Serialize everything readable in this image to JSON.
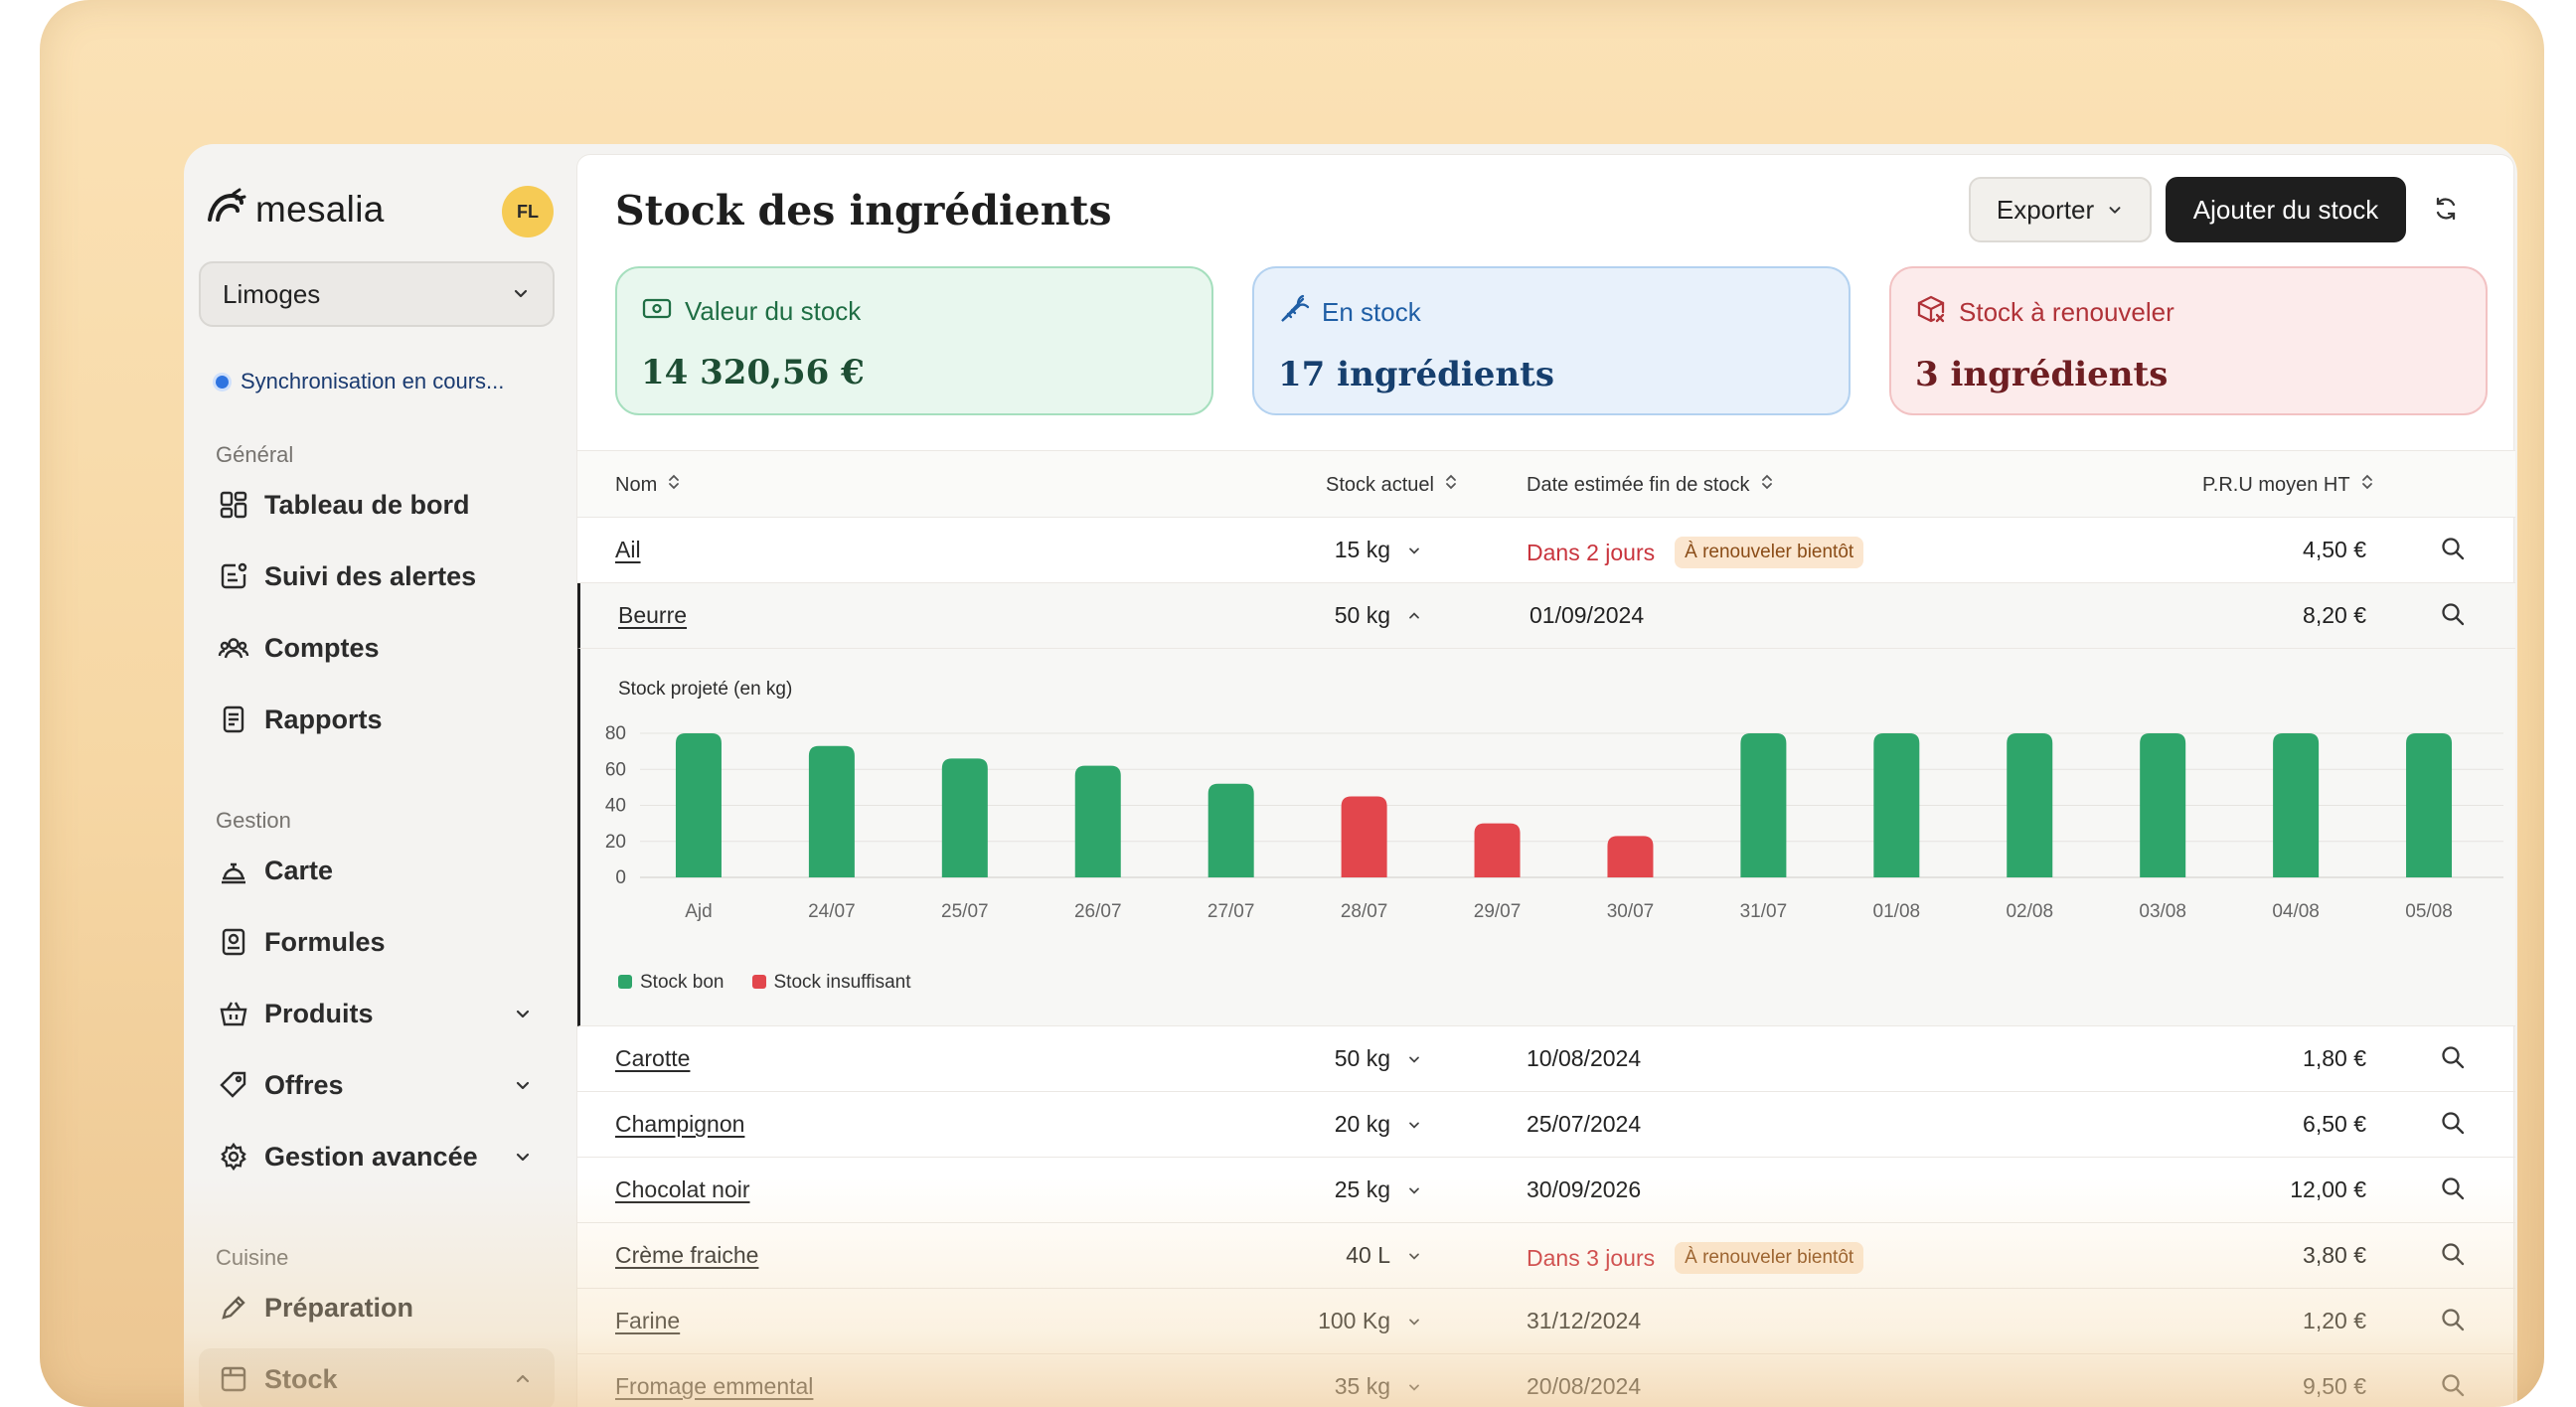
{
  "brand": {
    "name": "mesalia",
    "avatar_initials": "FL"
  },
  "sidebar": {
    "site": "Limoges",
    "sync_status": "Synchronisation en cours...",
    "sections": [
      "Général",
      "Gestion",
      "Cuisine"
    ],
    "items": [
      {
        "label": "Tableau de bord",
        "icon": "dashboard-icon"
      },
      {
        "label": "Suivi des alertes",
        "icon": "alert-icon"
      },
      {
        "label": "Comptes",
        "icon": "users-icon"
      },
      {
        "label": "Rapports",
        "icon": "report-icon"
      },
      {
        "label": "Carte",
        "icon": "cloche-icon"
      },
      {
        "label": "Formules",
        "icon": "menu-book-icon"
      },
      {
        "label": "Produits",
        "icon": "basket-icon",
        "expandable": true
      },
      {
        "label": "Offres",
        "icon": "tag-icon",
        "expandable": true
      },
      {
        "label": "Gestion avancée",
        "icon": "gear-icon",
        "expandable": true
      },
      {
        "label": "Préparation",
        "icon": "pen-icon"
      },
      {
        "label": "Stock",
        "icon": "stock-icon",
        "expandable": true,
        "active": true
      }
    ]
  },
  "header": {
    "title": "Stock des ingrédients",
    "export_label": "Exporter",
    "add_label": "Ajouter du stock"
  },
  "cards": {
    "value": {
      "label": "Valeur du stock",
      "value": "14 320,56 €"
    },
    "in_stock": {
      "label": "En stock",
      "value": "17 ingrédients"
    },
    "to_renew": {
      "label": "Stock à renouveler",
      "value": "3 ingrédients"
    }
  },
  "table": {
    "columns": [
      "Nom",
      "Stock actuel",
      "Date estimée fin de stock",
      "P.R.U moyen HT"
    ],
    "rows": [
      {
        "name": "Ail",
        "qty": "15 kg",
        "date": "Dans 2 jours",
        "badge": "À renouveler bientôt",
        "price": "4,50 €"
      },
      {
        "name": "Beurre",
        "qty": "50 kg",
        "date": "01/09/2024",
        "badge": "",
        "price": "8,20 €"
      },
      {
        "name": "Carotte",
        "qty": "50 kg",
        "date": "10/08/2024",
        "badge": "",
        "price": "1,80 €"
      },
      {
        "name": "Champignon",
        "qty": "20 kg",
        "date": "25/07/2024",
        "badge": "",
        "price": "6,50 €"
      },
      {
        "name": "Chocolat noir",
        "qty": "25 kg",
        "date": "30/09/2026",
        "badge": "",
        "price": "12,00 €"
      },
      {
        "name": "Crème fraiche",
        "qty": "40 L",
        "date": "Dans 3 jours",
        "badge": "À renouveler bientôt",
        "price": "3,80 €"
      },
      {
        "name": "Farine",
        "qty": "100 Kg",
        "date": "31/12/2024",
        "badge": "",
        "price": "1,20 €"
      },
      {
        "name": "Fromage emmental",
        "qty": "35 kg",
        "date": "20/08/2024",
        "badge": "",
        "price": "9,50 €"
      }
    ]
  },
  "colors": {
    "good": "#2ea56a",
    "bad": "#e2464c",
    "accent_dark": "#1e1e1e"
  },
  "chart_data": {
    "type": "bar",
    "title": "Stock projeté (en kg)",
    "categories": [
      "Ajd",
      "24/07",
      "25/07",
      "26/07",
      "27/07",
      "28/07",
      "29/07",
      "30/07",
      "31/07",
      "01/08",
      "02/08",
      "03/08",
      "04/08",
      "05/08"
    ],
    "values": [
      80,
      73,
      66,
      62,
      52,
      45,
      30,
      23,
      80,
      80,
      80,
      80,
      80,
      80
    ],
    "status": [
      "bon",
      "bon",
      "bon",
      "bon",
      "bon",
      "insuffisant",
      "insuffisant",
      "insuffisant",
      "bon",
      "bon",
      "bon",
      "bon",
      "bon",
      "bon"
    ],
    "yticks": [
      80,
      60,
      40,
      20,
      0
    ],
    "ylim": [
      0,
      80
    ],
    "legend": [
      "Stock bon",
      "Stock insuffisant"
    ]
  }
}
